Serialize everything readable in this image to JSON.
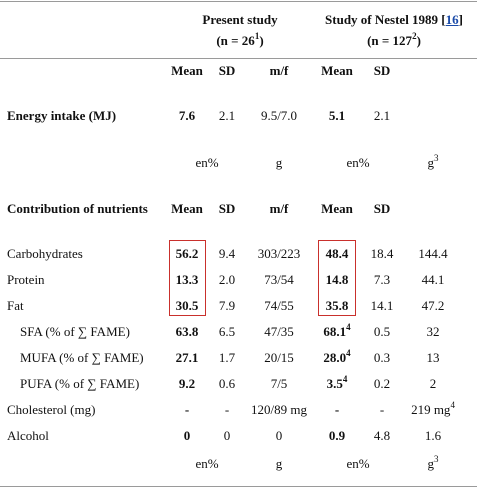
{
  "header": {
    "present": {
      "title": "Present study",
      "n": "(n = 26",
      "sup": "1",
      "tail": ")"
    },
    "nestel": {
      "title_pre": "Study of Nestel 1989 [",
      "ref": "16",
      "title_post": "]",
      "n": "(n = 127",
      "sup": "2",
      "tail": ")"
    }
  },
  "cols": {
    "mean": "Mean",
    "sd": "SD",
    "mf": "m/f"
  },
  "energy": {
    "label": "Energy intake (MJ)",
    "p_mean": "7.6",
    "p_sd": "2.1",
    "p_mf": "9.5/7.0",
    "n_mean": "5.1",
    "n_sd": "2.1"
  },
  "units1": {
    "en": "en%",
    "g": "g",
    "en2": "en%",
    "g2": "g",
    "g2sup": "3"
  },
  "contrib": {
    "label": "Contribution of nutrients"
  },
  "rows": [
    {
      "label": "Carbohydrates",
      "p_mean": "56.2",
      "p_sd": "9.4",
      "p_mf": "303/223",
      "n_mean": "48.4",
      "n_mean_sup": "",
      "n_sd": "18.4",
      "n_g": "144.4",
      "n_g_sup": ""
    },
    {
      "label": "Protein",
      "p_mean": "13.3",
      "p_sd": "2.0",
      "p_mf": "73/54",
      "n_mean": "14.8",
      "n_mean_sup": "",
      "n_sd": "7.3",
      "n_g": "44.1",
      "n_g_sup": ""
    },
    {
      "label": "Fat",
      "p_mean": "30.5",
      "p_sd": "7.9",
      "p_mf": "74/55",
      "n_mean": "35.8",
      "n_mean_sup": "",
      "n_sd": "14.1",
      "n_g": "47.2",
      "n_g_sup": ""
    },
    {
      "label": "SFA (% of ∑ FAME)",
      "p_mean": "63.8",
      "p_sd": "6.5",
      "p_mf": "47/35",
      "n_mean": "68.1",
      "n_mean_sup": "4",
      "n_sd": "0.5",
      "n_g": "32",
      "n_g_sup": ""
    },
    {
      "label": "MUFA (% of ∑ FAME)",
      "p_mean": "27.1",
      "p_sd": "1.7",
      "p_mf": "20/15",
      "n_mean": "28.0",
      "n_mean_sup": "4",
      "n_sd": "0.3",
      "n_g": "13",
      "n_g_sup": ""
    },
    {
      "label": "PUFA (% of ∑ FAME)",
      "p_mean": "9.2",
      "p_sd": "0.6",
      "p_mf": "7/5",
      "n_mean": "3.5",
      "n_mean_sup": "4",
      "n_sd": "0.2",
      "n_g": "2",
      "n_g_sup": ""
    },
    {
      "label": "Cholesterol (mg)",
      "p_mean": "-",
      "p_sd": "-",
      "p_mf": "120/89 mg",
      "n_mean": "-",
      "n_mean_sup": "",
      "n_sd": "-",
      "n_g": "219 mg",
      "n_g_sup": "4"
    },
    {
      "label": "Alcohol",
      "p_mean": "0",
      "p_sd": "0",
      "p_mf": "0",
      "n_mean": "0.9",
      "n_mean_sup": "",
      "n_sd": "4.8",
      "n_g": "1.6",
      "n_g_sup": ""
    }
  ],
  "units2": {
    "en": "en%",
    "g": "g",
    "en2": "en%",
    "g2": "g",
    "g2sup": "3"
  }
}
